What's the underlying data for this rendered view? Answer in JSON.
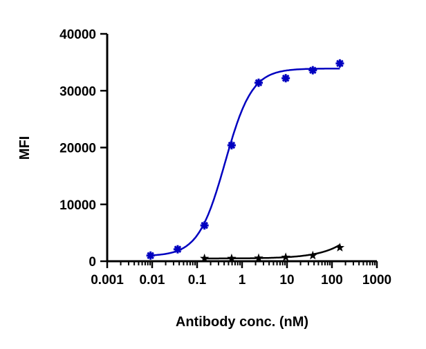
{
  "chart_data": {
    "type": "scatter",
    "title": "",
    "xlabel": "Antibody conc. (nM)",
    "ylabel": "MFI",
    "xscale": "log",
    "xlim": [
      0.001,
      1000
    ],
    "ylim": [
      0,
      40000
    ],
    "xticks": [
      "0.001",
      "0.01",
      "0.1",
      "1",
      "10",
      "100",
      "1000"
    ],
    "yticks": [
      "0",
      "10000",
      "20000",
      "30000",
      "40000"
    ],
    "grid": false,
    "legend": "none",
    "series": [
      {
        "color": "#0000c0",
        "marker": "asterisk",
        "x": [
          0.0092,
          0.037,
          0.146,
          0.586,
          2.34,
          9.375,
          37.5,
          150
        ],
        "y": [
          1000,
          2100,
          6300,
          20400,
          31400,
          32200,
          33600,
          34800
        ]
      },
      {
        "color": "#000000",
        "marker": "star",
        "x": [
          0.146,
          0.586,
          2.34,
          9.375,
          37.5,
          150
        ],
        "y": [
          500,
          500,
          550,
          700,
          1000,
          2400
        ]
      }
    ]
  }
}
